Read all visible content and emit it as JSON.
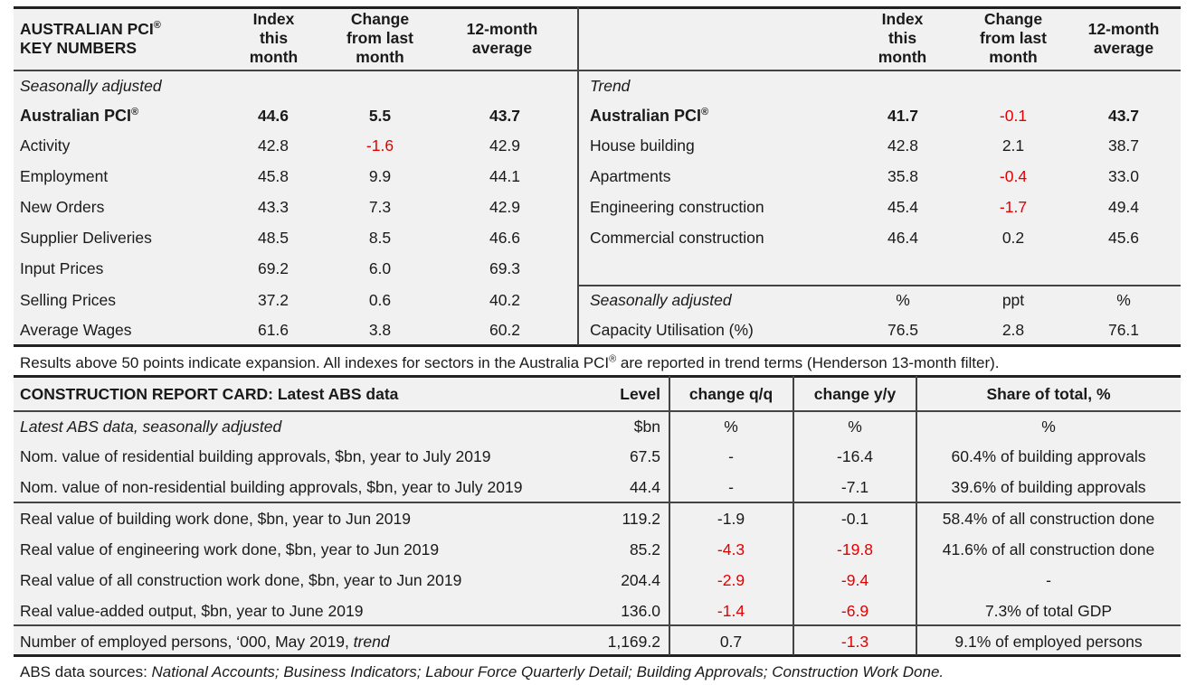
{
  "pci": {
    "title_line1": "AUSTRALIAN PCI",
    "title_reg": "®",
    "title_line2": "KEY NUMBERS",
    "col_index": [
      "Index",
      "this",
      "month"
    ],
    "col_change": [
      "Change",
      "from last",
      "month"
    ],
    "col_avg": [
      "12-month",
      "average"
    ],
    "left_section": "Seasonally adjusted",
    "left_rows": [
      {
        "label": "Australian PCI",
        "index": "44.6",
        "change": "5.5",
        "avg": "43.7"
      },
      {
        "label": "Activity",
        "index": "42.8",
        "change": "-1.6",
        "avg": "42.9"
      },
      {
        "label": "Employment",
        "index": "45.8",
        "change": "9.9",
        "avg": "44.1"
      },
      {
        "label": "New Orders",
        "index": "43.3",
        "change": "7.3",
        "avg": "42.9"
      },
      {
        "label": "Supplier Deliveries",
        "index": "48.5",
        "change": "8.5",
        "avg": "46.6"
      },
      {
        "label": "Input Prices",
        "index": "69.2",
        "change": "6.0",
        "avg": "69.3"
      },
      {
        "label": "Selling Prices",
        "index": "37.2",
        "change": "0.6",
        "avg": "40.2"
      },
      {
        "label": "Average Wages",
        "index": "61.6",
        "change": "3.8",
        "avg": "60.2"
      }
    ],
    "right_section": "Trend",
    "right_rows": [
      {
        "label": "Australian PCI",
        "index": "41.7",
        "change": "-0.1",
        "avg": "43.7"
      },
      {
        "label": "House building",
        "index": "42.8",
        "change": "2.1",
        "avg": "38.7"
      },
      {
        "label": "Apartments",
        "index": "35.8",
        "change": "-0.4",
        "avg": "33.0"
      },
      {
        "label": "Engineering construction",
        "index": "45.4",
        "change": "-1.7",
        "avg": "49.4"
      },
      {
        "label": "Commercial construction",
        "index": "46.4",
        "change": "0.2",
        "avg": "45.6"
      }
    ],
    "right_sa_section": {
      "label": "Seasonally adjusted",
      "index": "%",
      "change": "ppt",
      "avg": "%"
    },
    "capacity": {
      "label": "Capacity Utilisation (%)",
      "index": "76.5",
      "change": "2.8",
      "avg": "76.1"
    },
    "note_part1": "Results above 50 points indicate expansion. All indexes for sectors in the Australia PCI",
    "note_reg": "®",
    "note_part2": " are reported in trend terms (Henderson 13-month filter)."
  },
  "report": {
    "title": "CONSTRUCTION REPORT CARD: Latest ABS data",
    "col_level": "Level",
    "col_qq": "change q/q",
    "col_yy": "change y/y",
    "col_share": "Share of total, %",
    "section": "Latest ABS data, seasonally adjusted",
    "units": {
      "level": "$bn",
      "qq": "%",
      "yy": "%",
      "share": "%"
    },
    "rows": [
      {
        "label": "Nom. value of residential building approvals, $bn, year to July 2019",
        "level": "67.5",
        "qq": "-",
        "yy": "-16.4",
        "share": "60.4% of building approvals"
      },
      {
        "label": "Nom. value of non-residential building approvals, $bn, year to July 2019",
        "level": "44.4",
        "qq": "-",
        "yy": "-7.1",
        "share": "39.6% of building approvals"
      },
      {
        "label": "Real value of building work done, $bn, year to Jun 2019",
        "level": "119.2",
        "qq": "-1.9",
        "yy": "-0.1",
        "share": "58.4% of all construction done"
      },
      {
        "label": "Real value of engineering work done, $bn, year to Jun 2019",
        "level": "85.2",
        "qq": "-4.3",
        "yy": "-19.8",
        "share": "41.6% of all construction done"
      },
      {
        "label": "Real value of all construction work done, $bn, year to Jun 2019",
        "level": "204.4",
        "qq": "-2.9",
        "yy": "-9.4",
        "share": "-"
      },
      {
        "label": "Real value-added output, $bn, year to June 2019",
        "level": "136.0",
        "qq": "-1.4",
        "yy": "-6.9",
        "share": "7.3% of total GDP"
      }
    ],
    "employed": {
      "label": "Number of employed persons, ‘000, May 2019, ",
      "label_italic": "trend",
      "level": "1,169.2",
      "qq": "0.7",
      "yy": "-1.3",
      "share": "9.1% of employed persons"
    },
    "sources_prefix": "ABS data sources: ",
    "sources_italic": "National Accounts; Business Indicators; Labour Force Quarterly Detail; Building Approvals; Construction Work Done."
  }
}
